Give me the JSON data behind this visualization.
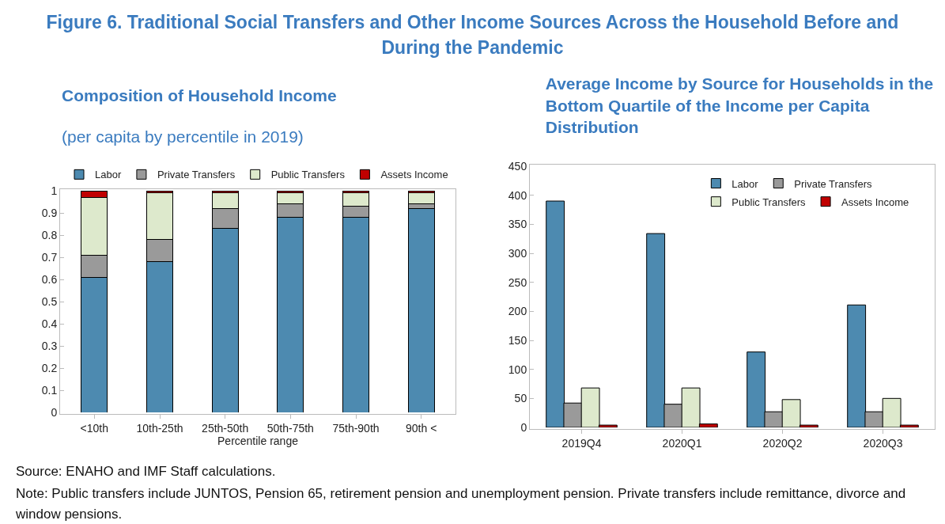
{
  "chart_data": [
    {
      "type": "bar",
      "title": "Composition of Household Income",
      "subtitle": "(per capita by percentile in 2019)",
      "xlabel": "Percentile range",
      "stacked": true,
      "annotations": [
        "Figure 6. Traditional Social Transfers and Other Income Sources Across the Household Before and During the Pandemic",
        "Source: ENAHO and IMF Staff calculations.",
        "Note: Public transfers include JUNTOS, Pension 65, retirement pension and unemployment pension. Private transfers include remittance, divorce and window pensions."
      ],
      "categories": [
        "<10th",
        "10th-25th",
        "25th-50th",
        "50th-75th",
        "75th-90th",
        "90th <"
      ],
      "series": [
        {
          "name": "Labor",
          "color": "#4d8ab0",
          "values": [
            0.61,
            0.68,
            0.83,
            0.88,
            0.88,
            0.92
          ]
        },
        {
          "name": "Private Transfers",
          "color": "#9a9a9a",
          "values": [
            0.1,
            0.1,
            0.09,
            0.06,
            0.05,
            0.02
          ]
        },
        {
          "name": "Public Transfers",
          "color": "#dde9cc",
          "values": [
            0.26,
            0.21,
            0.07,
            0.05,
            0.06,
            0.05
          ]
        },
        {
          "name": "Assets Income",
          "color": "#c00000",
          "values": [
            0.03,
            0.01,
            0.01,
            0.01,
            0.01,
            0.01
          ]
        }
      ],
      "ylim": [
        0,
        1
      ],
      "yticks": [
        0,
        0.1,
        0.2,
        0.3,
        0.4,
        0.5,
        0.6,
        0.7,
        0.8,
        0.9,
        1
      ],
      "grid": false,
      "legend": "top"
    },
    {
      "type": "bar",
      "title": "Average Income by Source for Households in the Bottom Quartile of the Income per Capita Distribution",
      "categories": [
        "2019Q4",
        "2020Q1",
        "2020Q2",
        "2020Q3"
      ],
      "series": [
        {
          "name": "Labor",
          "color": "#4d8ab0",
          "values": [
            390,
            334,
            130,
            211
          ]
        },
        {
          "name": "Private Transfers",
          "color": "#9a9a9a",
          "values": [
            42,
            40,
            27,
            27
          ]
        },
        {
          "name": "Public Transfers",
          "color": "#dde9cc",
          "values": [
            68,
            68,
            48,
            50
          ]
        },
        {
          "name": "Assets Income",
          "color": "#c00000",
          "values": [
            4,
            6,
            4,
            4
          ]
        }
      ],
      "ylim": [
        0,
        450
      ],
      "yticks": [
        0,
        50,
        100,
        150,
        200,
        250,
        300,
        350,
        400,
        450
      ],
      "grid": false,
      "legend": "top right"
    }
  ]
}
